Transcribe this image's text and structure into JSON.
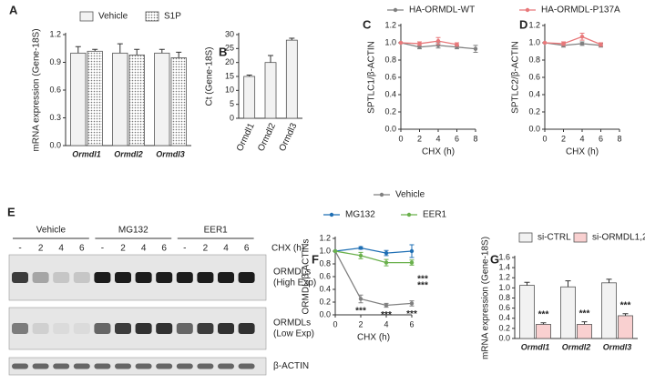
{
  "chart_data": [
    {
      "panel": "A",
      "type": "bar",
      "ylabel": "mRNA expression (Gene-18S)",
      "categories": [
        "Ormdl1",
        "Ormdl2",
        "Ormdl3"
      ],
      "series": [
        {
          "name": "Vehicle",
          "color": "#f2f2f2",
          "values": [
            1.0,
            1.0,
            1.0
          ],
          "errors": [
            0.07,
            0.1,
            0.04
          ]
        },
        {
          "name": "S1P",
          "color": "#d0d0d0",
          "fill_pattern": "dots",
          "values": [
            1.02,
            0.98,
            0.95
          ],
          "errors": [
            0.02,
            0.06,
            0.06
          ]
        }
      ],
      "ylim": [
        0,
        1.2
      ],
      "yticks": [
        {
          "value": 0,
          "label": "0.0"
        },
        0.3,
        0.6,
        0.9,
        1.2
      ]
    },
    {
      "panel": "B",
      "type": "bar",
      "ylabel": "Ct (Gene-18S)",
      "categories": [
        "Ormdl1",
        "Ormdl2",
        "Ormdl3"
      ],
      "series": [
        {
          "color": "#f2f2f2",
          "values": [
            15,
            20,
            28
          ],
          "errors": [
            0.5,
            2.5,
            0.7
          ]
        }
      ],
      "ylim": [
        0,
        30
      ],
      "yticks": [
        0,
        5,
        10,
        15,
        20,
        25,
        30
      ],
      "rotate_labels": true
    },
    {
      "panel": "C",
      "type": "line",
      "ylabel": "SPTLC1/β-ACTIN",
      "xlabel": "CHX (h)",
      "x": [
        0,
        2,
        4,
        6,
        8
      ],
      "series": [
        {
          "name": "HA-ORMDL-WT",
          "color": "#808080",
          "values": [
            1.0,
            0.95,
            0.97,
            0.95,
            0.93
          ],
          "errors": [
            0,
            0.02,
            0.03,
            0.02,
            0.04
          ]
        },
        {
          "name": "HA-ORMDL-P137A",
          "color": "#e8787a",
          "values": [
            1.0,
            0.99,
            1.02,
            0.98,
            null
          ],
          "errors": [
            0,
            0.02,
            0.04,
            0.02,
            null
          ]
        }
      ],
      "xlim": [
        0,
        8
      ],
      "xticks": [
        0,
        2,
        4,
        6,
        8
      ],
      "ylim": [
        0,
        1.2
      ],
      "yticks": [
        {
          "value": 0,
          "label": "0.0"
        },
        0.2,
        0.4,
        0.6,
        0.8,
        {
          "value": 1,
          "label": "1.0"
        },
        1.2
      ]
    },
    {
      "panel": "D",
      "type": "line",
      "ylabel": "SPTLC2/β-ACTIN",
      "xlabel": "CHX (h)",
      "x": [
        0,
        2,
        4,
        6
      ],
      "series": [
        {
          "color": "#808080",
          "values": [
            1.0,
            0.97,
            0.99,
            0.97
          ],
          "errors": [
            0,
            0.02,
            0.02,
            0.02
          ]
        },
        {
          "color": "#e8787a",
          "values": [
            1.0,
            0.99,
            1.07,
            0.98
          ],
          "errors": [
            0,
            0.02,
            0.04,
            0.02
          ]
        }
      ],
      "xlim": [
        0,
        8
      ],
      "xticks": [
        0,
        2,
        4,
        6,
        8
      ],
      "ylim": [
        0,
        1.2
      ],
      "yticks": [
        {
          "value": 0,
          "label": "0.0"
        },
        0.2,
        0.4,
        0.6,
        0.8,
        {
          "value": 1,
          "label": "1.0"
        },
        1.2
      ]
    },
    {
      "panel": "F",
      "type": "line",
      "ylabel": "ORMDL/β-ACTINs",
      "xlabel": "CHX (h)",
      "x": [
        0,
        2,
        4,
        6
      ],
      "series": [
        {
          "name": "Vehicle",
          "color": "#808080",
          "values": [
            1.0,
            0.25,
            0.15,
            0.18
          ],
          "errors": [
            0,
            0.06,
            0.03,
            0.04
          ],
          "sig_labels": [
            null,
            "***",
            "***",
            "***"
          ]
        },
        {
          "name": "MG132",
          "color": "#1f6fb4",
          "values": [
            1.0,
            1.05,
            0.97,
            1.0
          ],
          "errors": [
            0,
            0.02,
            0.04,
            0.1
          ],
          "sig_labels": [
            null,
            null,
            null,
            "***"
          ]
        },
        {
          "name": "EER1",
          "color": "#6ab04c",
          "values": [
            1.0,
            0.93,
            0.82,
            0.82
          ],
          "errors": [
            0,
            0.05,
            0.05,
            0.04
          ],
          "sig_labels": [
            null,
            null,
            null,
            "***"
          ]
        }
      ],
      "xlim": [
        0,
        6
      ],
      "xticks": [
        0,
        2,
        4,
        6
      ],
      "ylim": [
        0,
        1.2
      ],
      "yticks": [
        {
          "value": 0,
          "label": "0.0"
        },
        0.2,
        0.4,
        0.6,
        0.8,
        {
          "value": 1,
          "label": "1.0"
        },
        1.2
      ]
    },
    {
      "panel": "G",
      "type": "bar",
      "ylabel": "mRNA expression (Gene-18S)",
      "categories": [
        "Ormdl1",
        "Ormdl2",
        "Ormdl3"
      ],
      "series": [
        {
          "name": "si-CTRL",
          "color": "#f2f2f2",
          "values": [
            1.05,
            1.02,
            1.1
          ],
          "errors": [
            0.06,
            0.12,
            0.07
          ]
        },
        {
          "name": "si-ORMDL1,2,3",
          "color": "#f9d0d0",
          "values": [
            0.28,
            0.28,
            0.45
          ],
          "errors": [
            0.03,
            0.05,
            0.04
          ],
          "sig_labels": [
            "***",
            "***",
            "***"
          ]
        }
      ],
      "ylim": [
        0,
        1.6
      ],
      "yticks": [
        {
          "value": 0,
          "label": "0.0"
        },
        0.2,
        0.4,
        0.6,
        0.8,
        {
          "value": 1,
          "label": "1.0"
        },
        1.2,
        1.4,
        1.6
      ]
    }
  ],
  "blot": {
    "panel": "E",
    "groups": [
      {
        "name": "Vehicle",
        "lanes": [
          "-",
          "2",
          "4",
          "6"
        ]
      },
      {
        "name": "MG132",
        "lanes": [
          "-",
          "2",
          "4",
          "6"
        ]
      },
      {
        "name": "EER1",
        "lanes": [
          "-",
          "2",
          "4",
          "6"
        ]
      }
    ],
    "condition_label": "CHX (h)",
    "rows": [
      [
        "ORMDLs",
        "(High Exp)"
      ],
      [
        "ORMDLs",
        "(Low Exp)"
      ],
      [
        "β-ACTIN"
      ]
    ]
  }
}
